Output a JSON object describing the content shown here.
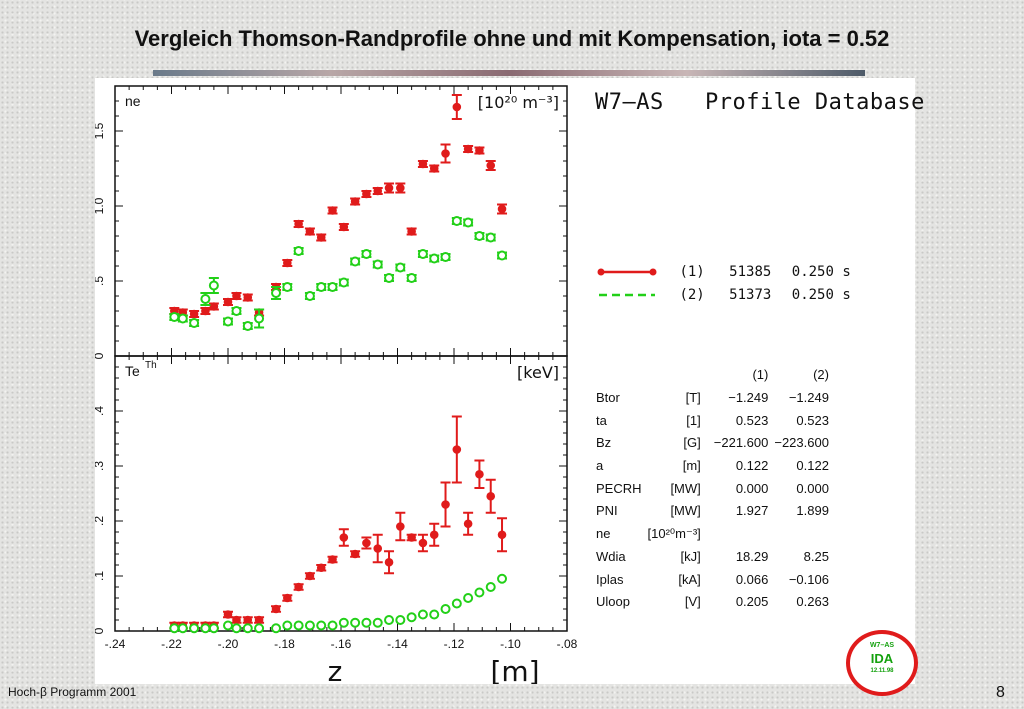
{
  "slide": {
    "title": "Vergleich Thomson-Randprofile ohne und mit Kompensation, iota = 0.52",
    "footer_left": "Hoch-β Programm 2001",
    "page_number": "8"
  },
  "colors": {
    "series1": "#e01b1b",
    "series2": "#22d018",
    "axes": "#111111"
  },
  "database_title": "W7–AS   Profile Database",
  "legend": [
    {
      "id": "(1)",
      "shot": "51385",
      "time": "0.250 s",
      "style": "solid-dot"
    },
    {
      "id": "(2)",
      "shot": "51373",
      "time": "0.250 s",
      "style": "dashed-circle"
    }
  ],
  "params": {
    "header": [
      "(1)",
      "(2)"
    ],
    "rows": [
      {
        "name": "Btor",
        "unit": "[T]",
        "v1": "−1.249",
        "v2": "−1.249"
      },
      {
        "name": "ta",
        "unit": "[1]",
        "v1": "0.523",
        "v2": "0.523"
      },
      {
        "name": "Bz",
        "unit": "[G]",
        "v1": "−221.600",
        "v2": "−223.600"
      },
      {
        "name": "a",
        "unit": "[m]",
        "v1": "0.122",
        "v2": "0.122"
      },
      {
        "name": "PECRH",
        "unit": "[MW]",
        "v1": "0.000",
        "v2": "0.000"
      },
      {
        "name": "PNI",
        "unit": "[MW]",
        "v1": "1.927",
        "v2": "1.899"
      },
      {
        "name": "ne",
        "unit": "[10²⁰m⁻³]",
        "v1": "",
        "v2": ""
      },
      {
        "name": "Wdia",
        "unit": "[kJ]",
        "v1": "18.29",
        "v2": "8.25"
      },
      {
        "name": "Iplas",
        "unit": "[kA]",
        "v1": "0.066",
        "v2": "−0.106"
      },
      {
        "name": "Uloop",
        "unit": "[V]",
        "v1": "0.205",
        "v2": "0.263"
      }
    ]
  },
  "stamp": {
    "line1": "W7–AS",
    "line2": "IDA",
    "line3": "12.11.98"
  },
  "chart_data": [
    {
      "type": "scatter",
      "title": "",
      "panel_label": "ne",
      "unit_label": "[10²⁰ m⁻³]",
      "xlabel": "z",
      "xunit": "[m]",
      "xlim": [
        -0.24,
        -0.08
      ],
      "ylim": [
        0,
        1.8
      ],
      "yticks": [
        0,
        0.5,
        1.0,
        1.5
      ],
      "ytick_labels": [
        "0",
        ".5",
        "1.0",
        "1.5"
      ],
      "series": [
        {
          "name": "(1)",
          "marker": "filled",
          "points": [
            [
              -0.219,
              0.3
            ],
            [
              -0.216,
              0.29
            ],
            [
              -0.212,
              0.28
            ],
            [
              -0.208,
              0.3
            ],
            [
              -0.205,
              0.33
            ],
            [
              -0.2,
              0.36
            ],
            [
              -0.197,
              0.4
            ],
            [
              -0.193,
              0.39
            ],
            [
              -0.189,
              0.29
            ],
            [
              -0.183,
              0.46
            ],
            [
              -0.179,
              0.62
            ],
            [
              -0.175,
              0.88
            ],
            [
              -0.171,
              0.83
            ],
            [
              -0.167,
              0.79
            ],
            [
              -0.163,
              0.97
            ],
            [
              -0.159,
              0.86
            ],
            [
              -0.155,
              1.03
            ],
            [
              -0.151,
              1.08
            ],
            [
              -0.147,
              1.1
            ],
            [
              -0.143,
              1.12
            ],
            [
              -0.139,
              1.12
            ],
            [
              -0.135,
              0.83
            ],
            [
              -0.131,
              1.28
            ],
            [
              -0.127,
              1.25
            ],
            [
              -0.123,
              1.35
            ],
            [
              -0.119,
              1.66
            ],
            [
              -0.115,
              1.38
            ],
            [
              -0.111,
              1.37
            ],
            [
              -0.107,
              1.27
            ],
            [
              -0.103,
              0.98
            ]
          ],
          "errors": [
            0.02,
            0.02,
            0.02,
            0.02,
            0.02,
            0.02,
            0.02,
            0.02,
            0.02,
            0.02,
            0.02,
            0.02,
            0.02,
            0.02,
            0.02,
            0.02,
            0.02,
            0.02,
            0.02,
            0.03,
            0.03,
            0.02,
            0.02,
            0.02,
            0.06,
            0.08,
            0.02,
            0.02,
            0.03,
            0.03
          ]
        },
        {
          "name": "(2)",
          "marker": "open",
          "points": [
            [
              -0.219,
              0.26
            ],
            [
              -0.216,
              0.25
            ],
            [
              -0.212,
              0.22
            ],
            [
              -0.208,
              0.38
            ],
            [
              -0.205,
              0.47
            ],
            [
              -0.2,
              0.23
            ],
            [
              -0.197,
              0.3
            ],
            [
              -0.193,
              0.2
            ],
            [
              -0.189,
              0.25
            ],
            [
              -0.183,
              0.42
            ],
            [
              -0.179,
              0.46
            ],
            [
              -0.175,
              0.7
            ],
            [
              -0.171,
              0.4
            ],
            [
              -0.167,
              0.46
            ],
            [
              -0.163,
              0.46
            ],
            [
              -0.159,
              0.49
            ],
            [
              -0.155,
              0.63
            ],
            [
              -0.151,
              0.68
            ],
            [
              -0.147,
              0.61
            ],
            [
              -0.143,
              0.52
            ],
            [
              -0.139,
              0.59
            ],
            [
              -0.135,
              0.52
            ],
            [
              -0.131,
              0.68
            ],
            [
              -0.127,
              0.65
            ],
            [
              -0.123,
              0.66
            ],
            [
              -0.119,
              0.9
            ],
            [
              -0.115,
              0.89
            ],
            [
              -0.111,
              0.8
            ],
            [
              -0.107,
              0.79
            ],
            [
              -0.103,
              0.67
            ]
          ],
          "errors": [
            0.02,
            0.02,
            0.02,
            0.04,
            0.05,
            0.02,
            0.02,
            0.02,
            0.06,
            0.04,
            0.02,
            0.02,
            0.02,
            0.02,
            0.02,
            0.02,
            0.02,
            0.02,
            0.02,
            0.02,
            0.02,
            0.02,
            0.02,
            0.02,
            0.02,
            0.02,
            0.02,
            0.02,
            0.02,
            0.02
          ]
        }
      ]
    },
    {
      "type": "scatter",
      "title": "",
      "panel_label": "Te",
      "panel_label_sup": "Th",
      "unit_label": "[keV]",
      "xlabel": "z",
      "xunit": "[m]",
      "xlim": [
        -0.24,
        -0.08
      ],
      "xticks": [
        -0.24,
        -0.22,
        -0.2,
        -0.18,
        -0.16,
        -0.14,
        -0.12,
        -0.1,
        -0.08
      ],
      "xtick_labels": [
        "-.24",
        "-.22",
        "-.20",
        "-.18",
        "-.16",
        "-.14",
        "-.12",
        "-.10",
        "-.08"
      ],
      "ylim": [
        0,
        0.5
      ],
      "yticks": [
        0,
        0.1,
        0.2,
        0.3,
        0.4
      ],
      "ytick_labels": [
        "0",
        ".1",
        ".2",
        ".3",
        ".4"
      ],
      "series": [
        {
          "name": "(1)",
          "marker": "filled",
          "points": [
            [
              -0.219,
              0.01
            ],
            [
              -0.216,
              0.01
            ],
            [
              -0.212,
              0.01
            ],
            [
              -0.208,
              0.01
            ],
            [
              -0.205,
              0.01
            ],
            [
              -0.2,
              0.03
            ],
            [
              -0.197,
              0.02
            ],
            [
              -0.193,
              0.02
            ],
            [
              -0.189,
              0.02
            ],
            [
              -0.183,
              0.04
            ],
            [
              -0.179,
              0.06
            ],
            [
              -0.175,
              0.08
            ],
            [
              -0.171,
              0.1
            ],
            [
              -0.167,
              0.115
            ],
            [
              -0.163,
              0.13
            ],
            [
              -0.159,
              0.17
            ],
            [
              -0.155,
              0.14
            ],
            [
              -0.151,
              0.16
            ],
            [
              -0.147,
              0.15
            ],
            [
              -0.143,
              0.125
            ],
            [
              -0.139,
              0.19
            ],
            [
              -0.135,
              0.17
            ],
            [
              -0.131,
              0.16
            ],
            [
              -0.127,
              0.175
            ],
            [
              -0.123,
              0.23
            ],
            [
              -0.119,
              0.33
            ],
            [
              -0.115,
              0.195
            ],
            [
              -0.111,
              0.285
            ],
            [
              -0.107,
              0.245
            ],
            [
              -0.103,
              0.175
            ]
          ],
          "errors": [
            0.005,
            0.005,
            0.005,
            0.005,
            0.005,
            0.005,
            0.005,
            0.005,
            0.005,
            0.005,
            0.005,
            0.005,
            0.005,
            0.005,
            0.005,
            0.015,
            0.005,
            0.01,
            0.025,
            0.02,
            0.025,
            0.005,
            0.015,
            0.02,
            0.04,
            0.06,
            0.02,
            0.025,
            0.03,
            0.03
          ]
        },
        {
          "name": "(2)",
          "marker": "open",
          "points": [
            [
              -0.219,
              0.005
            ],
            [
              -0.216,
              0.005
            ],
            [
              -0.212,
              0.005
            ],
            [
              -0.208,
              0.005
            ],
            [
              -0.205,
              0.005
            ],
            [
              -0.2,
              0.01
            ],
            [
              -0.197,
              0.005
            ],
            [
              -0.193,
              0.005
            ],
            [
              -0.189,
              0.005
            ],
            [
              -0.183,
              0.005
            ],
            [
              -0.179,
              0.01
            ],
            [
              -0.175,
              0.01
            ],
            [
              -0.171,
              0.01
            ],
            [
              -0.167,
              0.01
            ],
            [
              -0.163,
              0.01
            ],
            [
              -0.159,
              0.015
            ],
            [
              -0.155,
              0.015
            ],
            [
              -0.151,
              0.015
            ],
            [
              -0.147,
              0.015
            ],
            [
              -0.143,
              0.02
            ],
            [
              -0.139,
              0.02
            ],
            [
              -0.135,
              0.025
            ],
            [
              -0.131,
              0.03
            ],
            [
              -0.127,
              0.03
            ],
            [
              -0.123,
              0.04
            ],
            [
              -0.119,
              0.05
            ],
            [
              -0.115,
              0.06
            ],
            [
              -0.111,
              0.07
            ],
            [
              -0.107,
              0.08
            ],
            [
              -0.103,
              0.095
            ]
          ],
          "errors": [
            0,
            0,
            0,
            0,
            0,
            0,
            0,
            0,
            0,
            0,
            0,
            0,
            0,
            0,
            0,
            0,
            0,
            0,
            0,
            0,
            0,
            0,
            0,
            0,
            0,
            0,
            0,
            0,
            0,
            0
          ]
        }
      ]
    }
  ]
}
